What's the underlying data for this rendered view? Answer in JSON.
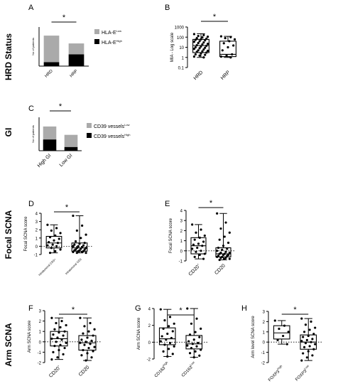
{
  "row_labels": [
    "HRD Status",
    "GI",
    "Focal SCNA",
    "Arm SCNA"
  ],
  "panel_letters": [
    "A",
    "B",
    "C",
    "D",
    "E",
    "F",
    "G",
    "H"
  ],
  "colors": {
    "high": "#aaaaaa",
    "low": "#000000",
    "box": "#000000",
    "point": "#000000"
  },
  "chart_data": [
    {
      "panel": "A",
      "type": "bar",
      "stacked": true,
      "ylabel": "No of patients",
      "categories": [
        "HRD",
        "HRP"
      ],
      "legend": [
        {
          "base": "HLA-E",
          "sup": "High"
        },
        {
          "base": "HLA-E",
          "sup": "Low"
        }
      ],
      "series": [
        {
          "values": [
            5,
            15
          ]
        },
        {
          "values": [
            34,
            14
          ]
        }
      ],
      "ylim": [
        0,
        50
      ],
      "significance": "*"
    },
    {
      "panel": "B",
      "type": "scatter",
      "subtype": "box-dot",
      "ylabel": "MIA - Log scale",
      "yscale": "log",
      "yticks": [
        "0.1",
        "1",
        "10",
        "100",
        "1000"
      ],
      "ylim": [
        0.1,
        1000
      ],
      "groups": [
        {
          "label": "HRD",
          "q1": 3,
          "median": 15,
          "q3": 60,
          "min": 1,
          "max": 220,
          "points": [
            200,
            160,
            130,
            110,
            95,
            80,
            70,
            60,
            55,
            48,
            40,
            35,
            30,
            26,
            22,
            19,
            16,
            14,
            12,
            10,
            9,
            8,
            7,
            6,
            5,
            4.5,
            4,
            3.5,
            3,
            2.5,
            2,
            1.8,
            1.5,
            1.2,
            1
          ]
        },
        {
          "label": "HRP",
          "q1": 1.2,
          "median": 2,
          "q3": 40,
          "min": 1,
          "max": 120,
          "points": [
            120,
            100,
            80,
            60,
            40,
            25,
            15,
            10,
            5,
            2,
            1.5,
            1.2,
            1
          ]
        }
      ],
      "significance": "*"
    },
    {
      "panel": "C",
      "type": "bar",
      "stacked": true,
      "ylabel": "No of patients",
      "categories": [
        "High GI",
        "Low GI"
      ],
      "legend": [
        {
          "base": "CD39 vessels",
          "sup": "High"
        },
        {
          "base": "CD39 vessels",
          "sup": "Low"
        }
      ],
      "series": [
        {
          "values": [
            27,
            9
          ]
        },
        {
          "values": [
            31,
            29
          ]
        }
      ],
      "ylim": [
        0,
        80
      ],
      "significance": "*"
    },
    {
      "panel": "D",
      "type": "scatter",
      "subtype": "box-dot",
      "ylabel": "Focal SCNA score",
      "ylim": [
        -1,
        4
      ],
      "yticks": [
        "-1",
        "0",
        "1",
        "2",
        "3",
        "4"
      ],
      "groups": [
        {
          "label": "Intratumoral CD3+",
          "q1": -0.2,
          "median": 0.4,
          "q3": 1.2,
          "min": -0.8,
          "max": 2.6,
          "points": [
            2.6,
            2.2,
            1.9,
            1.6,
            1.3,
            1.1,
            0.9,
            0.7,
            0.5,
            0.4,
            0.2,
            0.1,
            0.0,
            -0.2,
            -0.4,
            -0.6,
            -0.8
          ]
        },
        {
          "label": "Intratumoral CD3",
          "q1": -0.6,
          "median": -0.2,
          "q3": 0.4,
          "min": -0.8,
          "max": 3.7,
          "points": [
            3.7,
            2.5,
            1.9,
            1.4,
            1.0,
            0.6,
            0.4,
            0.3,
            0.2,
            0.1,
            0.0,
            0.0,
            -0.1,
            -0.2,
            -0.2,
            -0.3,
            -0.4,
            -0.4,
            -0.5,
            -0.5,
            -0.6,
            -0.6,
            -0.7,
            -0.7,
            -0.8,
            -0.8
          ]
        }
      ],
      "significance": "*"
    },
    {
      "panel": "E",
      "type": "scatter",
      "subtype": "box-dot",
      "ylabel": "Focal SCNA score",
      "ylim": [
        -1,
        4
      ],
      "yticks": [
        "-1",
        "0",
        "1",
        "2",
        "3",
        "4"
      ],
      "groups": [
        {
          "label": "CD20",
          "sup": "+",
          "q1": -0.3,
          "median": 0.5,
          "q3": 1.3,
          "min": -0.8,
          "max": 2.6,
          "points": [
            2.6,
            2.1,
            1.8,
            1.5,
            1.3,
            1.1,
            0.9,
            0.7,
            0.6,
            0.5,
            0.3,
            0.2,
            0.0,
            -0.1,
            -0.3,
            -0.4,
            -0.6,
            -0.8
          ]
        },
        {
          "label": "CD20",
          "sup": "",
          "q1": -0.6,
          "median": -0.3,
          "q3": 0.3,
          "min": -0.9,
          "max": 3.7,
          "points": [
            3.7,
            2.8,
            2.2,
            1.8,
            1.4,
            1.1,
            0.8,
            0.5,
            0.3,
            0.2,
            0.1,
            0.0,
            -0.1,
            -0.2,
            -0.2,
            -0.3,
            -0.3,
            -0.4,
            -0.4,
            -0.5,
            -0.5,
            -0.6,
            -0.6,
            -0.7,
            -0.7,
            -0.8,
            -0.8,
            -0.9
          ]
        }
      ],
      "significance": "*"
    },
    {
      "panel": "F",
      "type": "scatter",
      "subtype": "box-dot",
      "ylabel": "Arm SCNA score",
      "ylim": [
        -2,
        3
      ],
      "yticks": [
        "-2",
        "-1",
        "0",
        "1",
        "2",
        "3"
      ],
      "groups": [
        {
          "label": "CD20",
          "sup": "+",
          "q1": -0.4,
          "median": 0.3,
          "q3": 1.0,
          "min": -1.7,
          "max": 2.3,
          "points": [
            2.3,
            2.0,
            1.8,
            1.6,
            1.4,
            1.2,
            1.0,
            0.9,
            0.7,
            0.6,
            0.4,
            0.3,
            0.2,
            0.0,
            -0.1,
            -0.3,
            -0.4,
            -0.6,
            -0.8,
            -1.0,
            -1.2,
            -1.5,
            -1.7
          ]
        },
        {
          "label": "CD20",
          "sup": "",
          "q1": -0.8,
          "median": -0.1,
          "q3": 0.6,
          "min": -1.8,
          "max": 2.3,
          "points": [
            2.3,
            1.8,
            1.5,
            1.2,
            1.0,
            0.8,
            0.6,
            0.4,
            0.2,
            0.1,
            0.0,
            -0.1,
            -0.2,
            -0.3,
            -0.5,
            -0.6,
            -0.8,
            -0.9,
            -1.1,
            -1.3,
            -1.5,
            -1.8
          ]
        }
      ],
      "significance": "*"
    },
    {
      "panel": "G",
      "type": "scatter",
      "subtype": "box-dot",
      "ylabel": "Arm SCNA score",
      "ylim": [
        -2,
        4
      ],
      "yticks": [
        "-2",
        "0",
        "2",
        "4"
      ],
      "groups": [
        {
          "label": "CD163",
          "sup": "High",
          "q1": -0.3,
          "median": 0.4,
          "q3": 1.7,
          "min": -1.7,
          "max": 3.9,
          "points": [
            3.9,
            3.0,
            2.6,
            2.2,
            1.9,
            1.6,
            1.3,
            1.0,
            0.7,
            0.5,
            0.3,
            0.1,
            -0.1,
            -0.3,
            -0.5,
            -0.8,
            -1.1,
            -1.4,
            -1.7
          ]
        },
        {
          "label": "CD163",
          "sup": "Low",
          "q1": -0.8,
          "median": -0.2,
          "q3": 0.8,
          "min": -1.8,
          "max": 4.0,
          "points": [
            4.0,
            2.8,
            2.2,
            1.6,
            1.2,
            0.9,
            0.6,
            0.3,
            0.1,
            -0.1,
            -0.2,
            -0.4,
            -0.5,
            -0.7,
            -0.9,
            -1.1,
            -1.3,
            -1.6,
            -1.8
          ]
        }
      ],
      "significance": "*"
    },
    {
      "panel": "H",
      "type": "scatter",
      "subtype": "box-dot",
      "ylabel": "Arm level SCNA score",
      "ylim": [
        -2,
        3
      ],
      "yticks": [
        "-2",
        "-1",
        "0",
        "1",
        "2",
        "3"
      ],
      "groups": [
        {
          "label": "FOXP3",
          "sup": "High",
          "q1": 0.3,
          "median": 0.9,
          "q3": 1.6,
          "min": -0.2,
          "max": 2.1,
          "points": [
            2.1,
            1.6,
            1.3,
            1.0,
            0.6,
            0.2,
            -0.2
          ]
        },
        {
          "label": "FOXP3",
          "sup": "Low",
          "q1": -0.7,
          "median": 0.0,
          "q3": 0.7,
          "min": -1.8,
          "max": 2.3,
          "points": [
            2.3,
            2.0,
            1.7,
            1.4,
            1.2,
            1.0,
            0.8,
            0.6,
            0.5,
            0.3,
            0.2,
            0.1,
            0.0,
            -0.1,
            -0.2,
            -0.4,
            -0.5,
            -0.7,
            -0.9,
            -1.1,
            -1.3,
            -1.5,
            -1.8
          ]
        }
      ],
      "significance": "*"
    }
  ]
}
